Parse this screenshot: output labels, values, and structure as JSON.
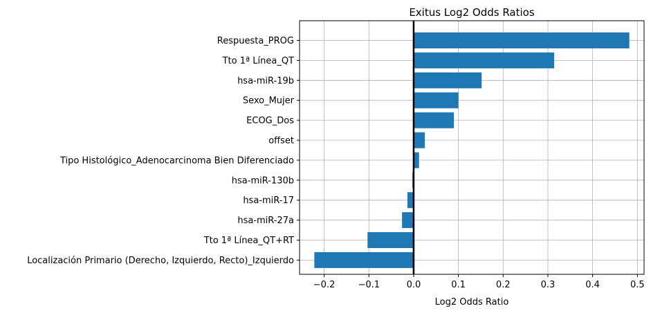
{
  "chart_data": {
    "type": "bar",
    "orientation": "horizontal",
    "title": "Exitus Log2 Odds Ratios",
    "xlabel": "Log2 Odds Ratio",
    "ylabel": "",
    "xlim": [
      -0.255,
      0.515
    ],
    "xticks": [
      -0.2,
      -0.1,
      0.0,
      0.1,
      0.2,
      0.3,
      0.4,
      0.5
    ],
    "xtick_labels": [
      "−0.2",
      "−0.1",
      "0.0",
      "0.1",
      "0.2",
      "0.3",
      "0.4",
      "0.5"
    ],
    "grid": true,
    "zero_line": true,
    "bar_color": "#1f77b4",
    "categories": [
      "Respuesta_PROG",
      "Tto 1ª Línea_QT",
      "hsa-miR-19b",
      "Sexo_Mujer",
      "ECOG_Dos",
      "offset",
      "Tipo Histológico_Adenocarcinoma Bien Diferenciado",
      "hsa-miR-130b",
      "hsa-miR-17",
      "hsa-miR-27a",
      "Tto 1ª Línea_QT+RT",
      "Localización Primario (Derecho, Izquierdo, Recto)_Izquierdo"
    ],
    "values": [
      0.482,
      0.314,
      0.152,
      0.1,
      0.09,
      0.025,
      0.012,
      -0.003,
      -0.014,
      -0.026,
      -0.103,
      -0.222
    ]
  }
}
